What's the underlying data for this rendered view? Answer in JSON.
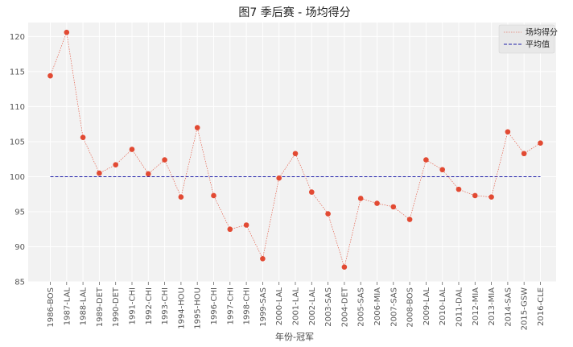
{
  "chart_data": {
    "type": "line",
    "title": "图7 季后赛 - 场均得分",
    "xlabel": "年份-冠军",
    "ylabel": "",
    "ylim": [
      85,
      122
    ],
    "yticks": [
      85,
      90,
      95,
      100,
      105,
      110,
      115,
      120
    ],
    "grid": true,
    "legend_position": "top-right",
    "categories": [
      "1986-BOS",
      "1987-LAL",
      "1988-LAL",
      "1989-DET",
      "1990-DET",
      "1991-CHI",
      "1992-CHI",
      "1993-CHI",
      "1994-HOU",
      "1995-HOU",
      "1996-CHI",
      "1997-CHI",
      "1998-CHI",
      "1999-SAS",
      "2000-LAL",
      "2001-LAL",
      "2002-LAL",
      "2003-SAS",
      "2004-DET",
      "2005-SAS",
      "2006-MIA",
      "2007-SAS",
      "2008-BOS",
      "2009-LAL",
      "2010-LAL",
      "2011-DAL",
      "2012-MIA",
      "2013-MIA",
      "2014-SAS",
      "2015-GSW",
      "2016-CLE"
    ],
    "series": [
      {
        "name": "场均得分",
        "color": "#e24a33",
        "values": [
          114.4,
          120.6,
          105.6,
          100.5,
          101.7,
          103.9,
          100.4,
          102.4,
          97.1,
          107.0,
          97.3,
          92.5,
          93.1,
          88.3,
          99.8,
          103.3,
          97.8,
          94.7,
          87.1,
          96.9,
          96.2,
          95.7,
          93.9,
          102.4,
          101.0,
          98.2,
          97.3,
          97.1,
          106.4,
          103.3,
          104.8
        ]
      },
      {
        "name": "平均值",
        "color": "#1f1fa8",
        "constant": 100.0
      }
    ]
  }
}
